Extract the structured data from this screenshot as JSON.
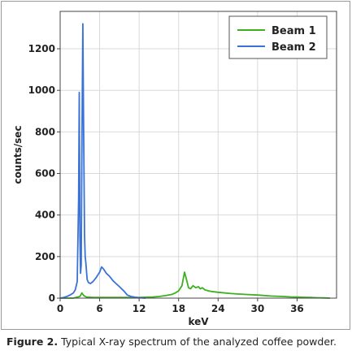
{
  "figure": {
    "caption_label": "Figure 2.",
    "caption_text": " Typical X-ray spectrum of the analyzed coffee powder."
  },
  "chart_data": {
    "type": "line",
    "xlabel": "keV",
    "ylabel": "counts/sec",
    "xlim": [
      0,
      42
    ],
    "ylim": [
      0,
      1380
    ],
    "x_ticks": [
      0,
      6,
      12,
      18,
      24,
      30,
      36
    ],
    "y_ticks": [
      0,
      200,
      400,
      600,
      800,
      1000,
      1200
    ],
    "grid": true,
    "legend_position": "top-right",
    "series": [
      {
        "name": "Beam 1",
        "color": "#3cb01e",
        "x": [
          0,
          1,
          2,
          2.6,
          3,
          3.3,
          3.6,
          4,
          5,
          6,
          8,
          10,
          12,
          14,
          15,
          16,
          17,
          17.5,
          18,
          18.5,
          18.9,
          19.2,
          19.5,
          19.8,
          20.2,
          20.6,
          21.0,
          21.3,
          21.6,
          22.0,
          22.5,
          23,
          24,
          26,
          28,
          30,
          32,
          34,
          35,
          36,
          37,
          38,
          39,
          40,
          41
        ],
        "y": [
          0,
          0,
          0,
          5,
          8,
          25,
          12,
          5,
          3,
          3,
          3,
          3,
          3,
          5,
          8,
          12,
          18,
          25,
          35,
          60,
          125,
          90,
          50,
          45,
          60,
          50,
          55,
          45,
          50,
          40,
          35,
          32,
          28,
          22,
          18,
          15,
          10,
          8,
          6,
          5,
          4,
          3,
          2,
          1,
          0
        ]
      },
      {
        "name": "Beam 2",
        "color": "#3a72d6",
        "x": [
          0,
          0.5,
          1,
          1.5,
          2,
          2.3,
          2.6,
          2.8,
          2.9,
          3.0,
          3.1,
          3.2,
          3.3,
          3.45,
          3.55,
          3.7,
          3.8,
          3.9,
          4.1,
          4.3,
          4.6,
          5,
          5.5,
          6,
          6.3,
          6.6,
          7,
          7.5,
          8,
          8.5,
          9,
          9.5,
          9.8,
          10.2,
          10.8,
          11.5,
          12,
          13
        ],
        "y": [
          0,
          3,
          8,
          15,
          25,
          40,
          80,
          480,
          990,
          300,
          120,
          160,
          700,
          1320,
          900,
          300,
          200,
          170,
          90,
          75,
          70,
          80,
          100,
          125,
          150,
          140,
          120,
          105,
          85,
          70,
          55,
          40,
          30,
          15,
          8,
          4,
          2,
          0
        ]
      }
    ]
  }
}
